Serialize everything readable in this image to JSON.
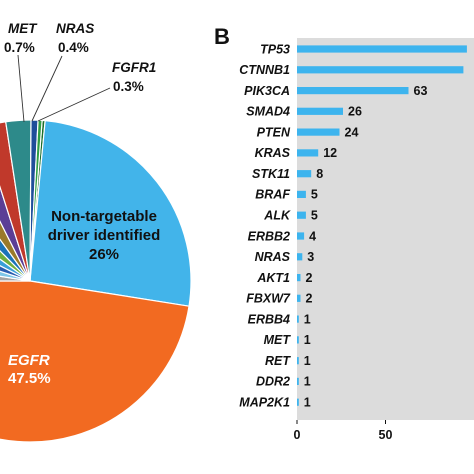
{
  "chart_data": [
    {
      "type": "pie",
      "title": "",
      "slices": [
        {
          "label": "EGFR",
          "value": 47.5,
          "value_label": "47.5%",
          "color": "#f26a21"
        },
        {
          "label": "Non-targetable driver identified",
          "value": 26,
          "value_label": "26%",
          "color": "#42b4ea"
        },
        {
          "label": "MET",
          "value": 0.7,
          "value_label": "0.7%",
          "color": "#1f4e9a"
        },
        {
          "label": "NRAS",
          "value": 0.4,
          "value_label": "0.4%",
          "color": "#2f9e44"
        },
        {
          "label": "FGFR1",
          "value": 0.3,
          "value_label": "0.3%",
          "color": "#1d6f2e"
        }
      ],
      "other_slice_colors": [
        "#a5a5a5",
        "#7fc6e8",
        "#2a5db0",
        "#3aa0d8",
        "#6fae3d",
        "#1a73b8",
        "#9a7a2a",
        "#5b3e96",
        "#c0392b",
        "#2d8a8a"
      ],
      "labels": {
        "inside_main": {
          "line1": "Non-targetable",
          "line2": "driver identified",
          "line3": "26%"
        },
        "egfr": {
          "name": "EGFR",
          "value": "47.5%"
        },
        "met": {
          "name": "MET",
          "value": "0.7%"
        },
        "nras": {
          "name": "NRAS",
          "value": "0.4%"
        },
        "fgfr1": {
          "name": "FGFR1",
          "value": "0.3%"
        }
      }
    },
    {
      "type": "bar",
      "orientation": "horizontal",
      "panel_label": "B",
      "title": "",
      "xlabel": "",
      "ylabel": "",
      "xlim": [
        0,
        100
      ],
      "xticks": [
        0,
        50
      ],
      "grid": false,
      "background": "#dcdcdc",
      "bar_color": "#3db4ee",
      "categories": [
        "TP53",
        "CTNNB1",
        "PIK3CA",
        "SMAD4",
        "PTEN",
        "KRAS",
        "STK11",
        "BRAF",
        "ALK",
        "ERBB2",
        "NRAS",
        "AKT1",
        "FBXW7",
        "ERBB4",
        "MET",
        "RET",
        "DDR2",
        "MAP2K1"
      ],
      "values": [
        96,
        94,
        63,
        26,
        24,
        12,
        8,
        5,
        5,
        4,
        3,
        2,
        2,
        1,
        1,
        1,
        1,
        1
      ],
      "value_labels": [
        "",
        "",
        "63",
        "26",
        "24",
        "12",
        "8",
        "5",
        "5",
        "4",
        "3",
        "2",
        "2",
        "1",
        "1",
        "1",
        "1",
        "1"
      ]
    }
  ]
}
